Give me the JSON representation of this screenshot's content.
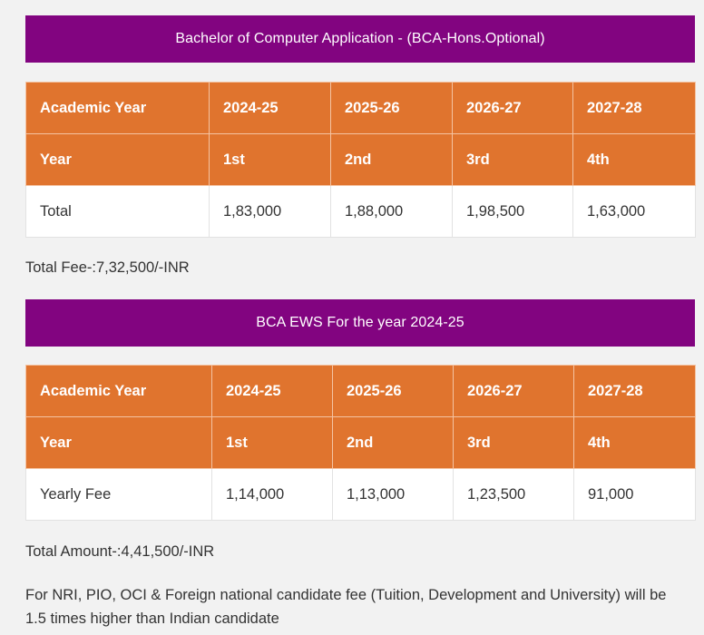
{
  "section1": {
    "title": "Bachelor of Computer Application - (BCA-Hons.Optional)",
    "header_row": [
      "Academic Year",
      "2024-25",
      "2025-26",
      "2026-27",
      "2027-28"
    ],
    "year_row": [
      "Year",
      "1st",
      "2nd",
      "3rd",
      "4th"
    ],
    "data_row": [
      "Total",
      "1,83,000",
      "1,88,000",
      "1,98,500",
      "1,63,000"
    ],
    "total_text": "Total Fee-:7,32,500/-INR"
  },
  "section2": {
    "title": "BCA EWS For the year 2024-25",
    "header_row": [
      "Academic Year",
      "2024-25",
      "2025-26",
      "2026-27",
      "2027-28"
    ],
    "year_row": [
      "Year",
      "1st",
      "2nd",
      "3rd",
      "4th"
    ],
    "data_row": [
      "Yearly Fee",
      "1,14,000",
      "1,13,000",
      "1,23,500",
      "91,000"
    ],
    "total_text": "Total Amount-:4,41,500/-INR"
  },
  "footnote": "For NRI, PIO, OCI & Foreign national candidate fee (Tuition, Development and University) will be 1.5 times higher than Indian candidate",
  "colors": {
    "banner": "#820480",
    "table_header": "#e0742e",
    "background": "#f2f2f2"
  }
}
